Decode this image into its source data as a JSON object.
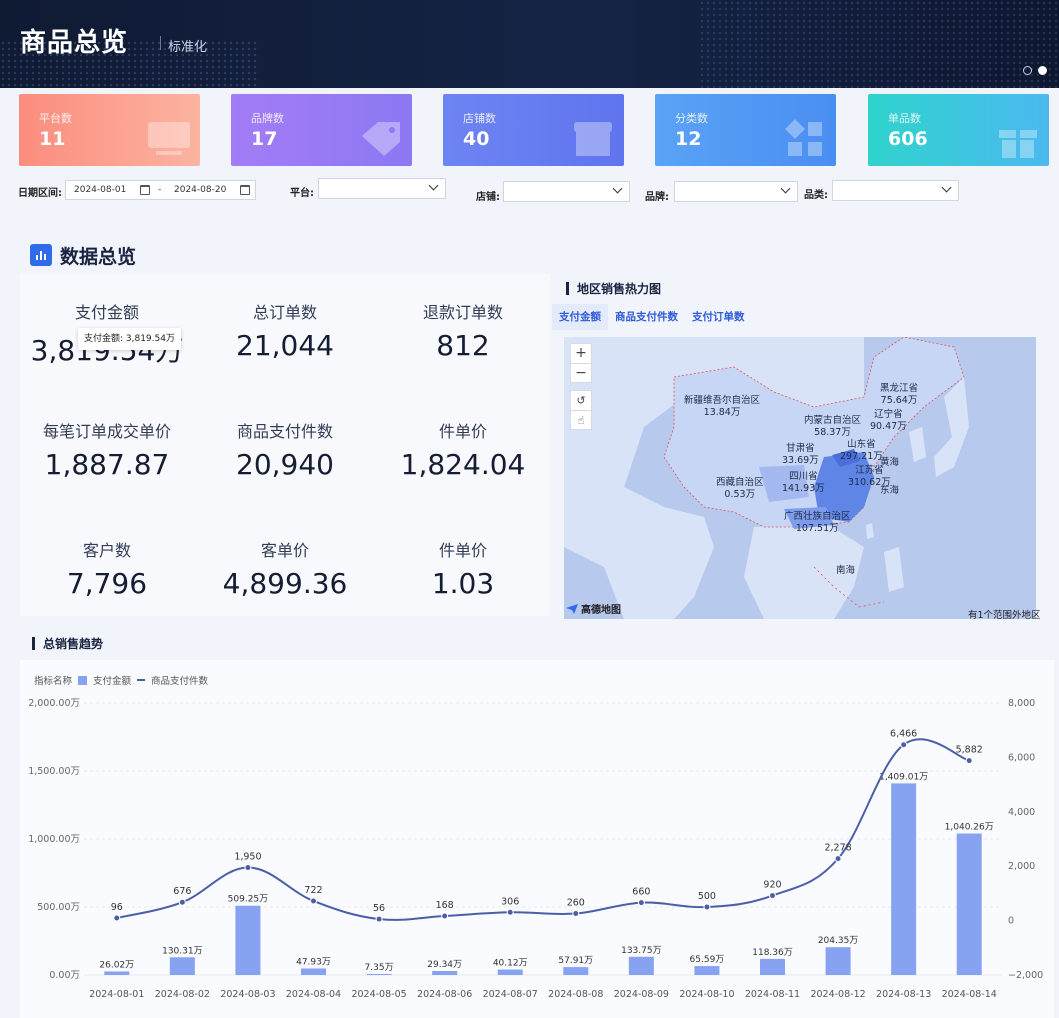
{
  "header": {
    "title": "商品总览",
    "subtitle": "标准化"
  },
  "cards": [
    {
      "label": "平台数",
      "value": "11",
      "color_from": "#fb8d7e",
      "color_to": "#fcb3a0",
      "icon": "monitor-icon"
    },
    {
      "label": "品牌数",
      "value": "17",
      "color_from": "#a37cf6",
      "color_to": "#8d78f4",
      "icon": "tag-icon"
    },
    {
      "label": "店铺数",
      "value": "40",
      "color_from": "#6e84f3",
      "color_to": "#5f74ee",
      "icon": "store-icon"
    },
    {
      "label": "分类数",
      "value": "12",
      "color_from": "#5aa3f6",
      "color_to": "#4a8ef2",
      "icon": "category-icon"
    },
    {
      "label": "单品数",
      "value": "606",
      "color_from": "#2fd3cd",
      "color_to": "#4bb9f0",
      "icon": "gift-icon"
    }
  ],
  "filters": {
    "date_label": "日期区间:",
    "date_start": "2024-08-01",
    "date_sep": "-",
    "date_end": "2024-08-20",
    "platform_label": "平台:",
    "store_label": "店铺:",
    "brand_label": "品牌:",
    "category_label": "品类:"
  },
  "overview": {
    "title": "数据总览",
    "kpis": [
      {
        "label": "支付金额",
        "value": "3,819.54万"
      },
      {
        "label": "总订单数",
        "value": "21,044"
      },
      {
        "label": "退款订单数",
        "value": "812"
      },
      {
        "label": "每笔订单成交单价",
        "value": "1,887.87"
      },
      {
        "label": "商品支付件数",
        "value": "20,940"
      },
      {
        "label": "件单价",
        "value": "1,824.04"
      },
      {
        "label": "客户数",
        "value": "7,796"
      },
      {
        "label": "客单价",
        "value": "4,899.36"
      },
      {
        "label": "件单价",
        "value": "1.03"
      }
    ],
    "tooltip": "支付金额: 3,819.54万"
  },
  "map": {
    "title": "地区销售热力图",
    "tabs": [
      "支付金额",
      "商品支付件数",
      "支付订单数"
    ],
    "active_tab": "支付金额",
    "regions": [
      {
        "name": "新疆维吾尔自治区",
        "value": "13.84万"
      },
      {
        "name": "内蒙古自治区",
        "value": "58.37万"
      },
      {
        "name": "黑龙江省",
        "value": "75.64万"
      },
      {
        "name": "辽宁省",
        "value": "90.47万"
      },
      {
        "name": "甘肃省",
        "value": "33.69万"
      },
      {
        "name": "山东省",
        "value": "297.21万"
      },
      {
        "name": "四川省",
        "value": "141.93万"
      },
      {
        "name": "江苏省",
        "value": "310.62万"
      },
      {
        "name": "西藏自治区",
        "value": "0.53万"
      },
      {
        "name": "广西壮族自治区",
        "value": "107.51万"
      }
    ],
    "seas": [
      "黄海",
      "东海",
      "南海"
    ],
    "logo": "高德地图",
    "footer_note": "有1个范围外地区",
    "controls": [
      "zoom-in",
      "zoom-out",
      "reset",
      "pan"
    ]
  },
  "trend": {
    "title": "总销售趋势",
    "legend_title": "指标名称",
    "legend": [
      "支付金额",
      "商品支付件数"
    ]
  },
  "chart_data": {
    "type": "bar",
    "title": "总销售趋势",
    "categories": [
      "2024-08-01",
      "2024-08-02",
      "2024-08-03",
      "2024-08-04",
      "2024-08-05",
      "2024-08-06",
      "2024-08-07",
      "2024-08-08",
      "2024-08-09",
      "2024-08-10",
      "2024-08-11",
      "2024-08-12",
      "2024-08-13",
      "2024-08-14"
    ],
    "series": [
      {
        "name": "支付金额",
        "type": "bar",
        "axis": "left",
        "color": "#87a2f1",
        "values": [
          26.02,
          130.31,
          509.25,
          47.93,
          7.35,
          29.34,
          40.12,
          57.91,
          133.75,
          65.59,
          118.36,
          204.35,
          1409.01,
          1040.26
        ],
        "labels": [
          "26.02万",
          "130.31万",
          "509.25万",
          "47.93万",
          "7.35万",
          "29.34万",
          "40.12万",
          "57.91万",
          "133.75万",
          "65.59万",
          "118.36万",
          "204.35万",
          "1,409.01万",
          "1,040.26万"
        ]
      },
      {
        "name": "商品支付件数",
        "type": "line",
        "axis": "right",
        "color": "#4b5fa6",
        "values": [
          96,
          676,
          1950,
          722,
          56,
          168,
          306,
          260,
          660,
          500,
          920,
          2278,
          6466,
          5882
        ],
        "labels": [
          "96",
          "676",
          "1,950",
          "722",
          "56",
          "168",
          "306",
          "260",
          "660",
          "500",
          "920",
          "2,278",
          "6,466",
          "5,882"
        ]
      }
    ],
    "y_left": {
      "ticks": [
        "0.00万",
        "500.00万",
        "1,000.00万",
        "1,500.00万",
        "2,000.00万"
      ],
      "min": 0,
      "max": 2000
    },
    "y_right": {
      "ticks": [
        "−2,000",
        "0",
        "2,000",
        "4,000",
        "6,000",
        "8,000"
      ],
      "min": -2000,
      "max": 8000
    },
    "legend_position": "top-left",
    "grid": true
  }
}
